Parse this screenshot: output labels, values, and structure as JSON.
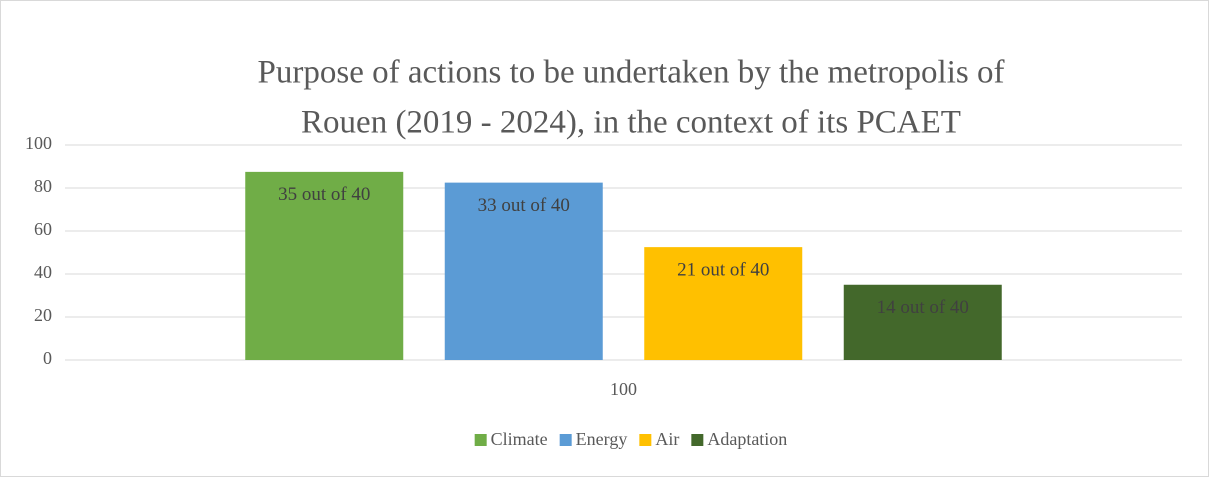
{
  "chart_data": {
    "type": "bar",
    "title": [
      "Purpose of actions to be undertaken by the metropolis of",
      "Rouen (2019 - 2024), in the context of its PCAET"
    ],
    "categories": [
      "100"
    ],
    "series": [
      {
        "name": "Climate",
        "color": "#70ad47",
        "values": [
          87.5
        ],
        "value_labels": [
          "35 out of 40"
        ]
      },
      {
        "name": "Energy",
        "color": "#5b9bd5",
        "values": [
          82.5
        ],
        "value_labels": [
          "33 out of 40"
        ]
      },
      {
        "name": "Air",
        "color": "#ffc000",
        "values": [
          52.5
        ],
        "value_labels": [
          "21 out of 40"
        ]
      },
      {
        "name": "Adaptation",
        "color": "#43682b",
        "values": [
          35
        ],
        "value_labels": [
          "14 out of 40"
        ]
      }
    ],
    "ylim": [
      0,
      100
    ],
    "yticks": [
      0,
      20,
      40,
      60,
      80,
      100
    ],
    "grid": true,
    "legend": "bottom"
  }
}
